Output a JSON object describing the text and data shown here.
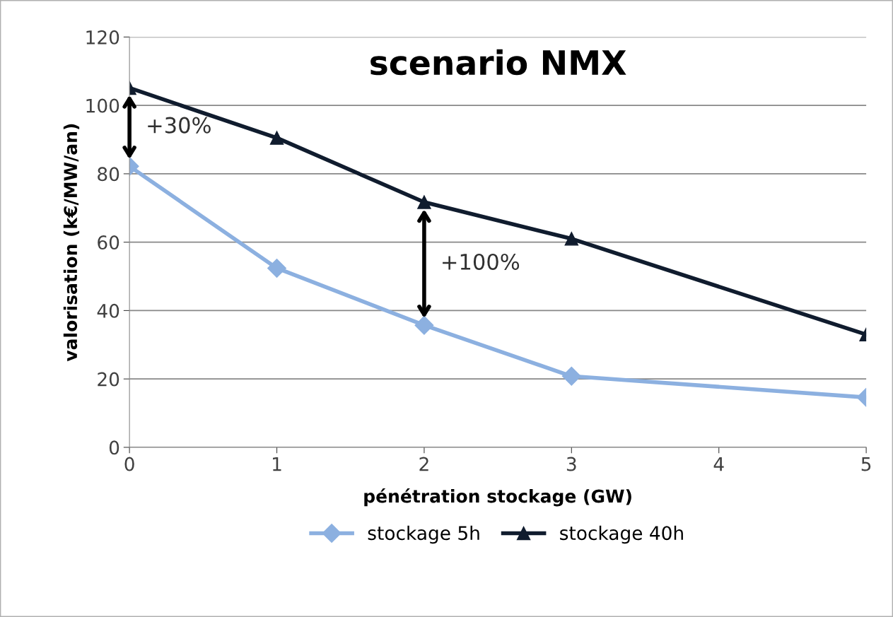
{
  "chart_data": {
    "type": "line",
    "title": "scenario NMX",
    "xlabel": "pénétration stockage (GW)",
    "ylabel": "valorisation (k€/MW/an)",
    "x": [
      0,
      1,
      2,
      3,
      5
    ],
    "series": [
      {
        "name": "stockage 5h",
        "color": "#8cb0e0",
        "marker": "diamond",
        "values": [
          82.2,
          52.4,
          35.7,
          20.8,
          14.6
        ]
      },
      {
        "name": "stockage 40h",
        "color": "#101c2e",
        "marker": "triangle",
        "values": [
          105.1,
          90.5,
          71.7,
          61,
          33
        ]
      }
    ],
    "annotations": [
      "+30%",
      "+100%"
    ],
    "xlim": [
      0,
      5
    ],
    "xticks": [
      0,
      1,
      2,
      3,
      4,
      5
    ],
    "ylim": [
      0,
      120
    ],
    "yticks": [
      0,
      20,
      40,
      60,
      80,
      100,
      120
    ],
    "grid": "y",
    "legend": "bottom",
    "line_style": "solid"
  }
}
